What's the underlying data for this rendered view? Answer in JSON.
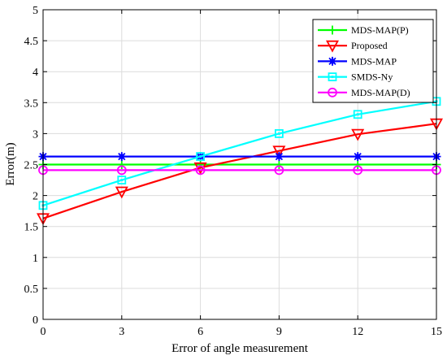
{
  "chart_data": {
    "type": "line",
    "title": "",
    "xlabel": "Error of angle measurement",
    "ylabel": "Error(m)",
    "x": [
      0,
      3,
      6,
      9,
      12,
      15
    ],
    "xlim": [
      0,
      15
    ],
    "ylim": [
      0,
      5
    ],
    "xticks": [
      "0",
      "3",
      "6",
      "9",
      "12",
      "15"
    ],
    "yticks": [
      "0",
      "0.5",
      "1",
      "1.5",
      "2",
      "2.5",
      "3",
      "3.5",
      "4",
      "4.5",
      "5"
    ],
    "grid": true,
    "legend_position": "top-right",
    "series": [
      {
        "name": "MDS-MAP(P)",
        "color": "#00ff00",
        "marker": "plus",
        "values": [
          2.5,
          2.5,
          2.5,
          2.5,
          2.5,
          2.5
        ]
      },
      {
        "name": "Proposed",
        "color": "#ff0000",
        "marker": "triangle-down",
        "values": [
          1.63,
          2.06,
          2.45,
          2.72,
          2.99,
          3.16
        ]
      },
      {
        "name": "MDS-MAP",
        "color": "#0000ff",
        "marker": "star",
        "values": [
          2.63,
          2.63,
          2.63,
          2.63,
          2.63,
          2.63
        ]
      },
      {
        "name": "SMDS-Ny",
        "color": "#00ffff",
        "marker": "square",
        "values": [
          1.84,
          2.25,
          2.63,
          3.0,
          3.31,
          3.52
        ]
      },
      {
        "name": "MDS-MAP(D)",
        "color": "#ff00ff",
        "marker": "circle",
        "values": [
          2.41,
          2.41,
          2.41,
          2.41,
          2.41,
          2.41
        ]
      }
    ]
  }
}
